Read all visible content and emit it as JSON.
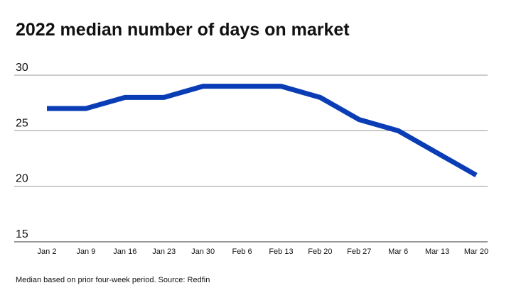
{
  "chart_data": {
    "type": "line",
    "title": "2022 median number of days on market",
    "note": "Median based on prior four-week period. Source: Redfin",
    "categories": [
      "Jan 2",
      "Jan 9",
      "Jan 16",
      "Jan 23",
      "Jan 30",
      "Feb 6",
      "Feb 13",
      "Feb 20",
      "Feb 27",
      "Mar 6",
      "Mar 13",
      "Mar 20"
    ],
    "values": [
      27,
      27,
      28,
      28,
      29,
      29,
      29,
      28,
      26,
      25,
      23,
      21
    ],
    "color": "#0a3db5",
    "ylim": [
      15,
      30
    ],
    "yticks": [
      15,
      20,
      25,
      30
    ],
    "grid": true
  }
}
